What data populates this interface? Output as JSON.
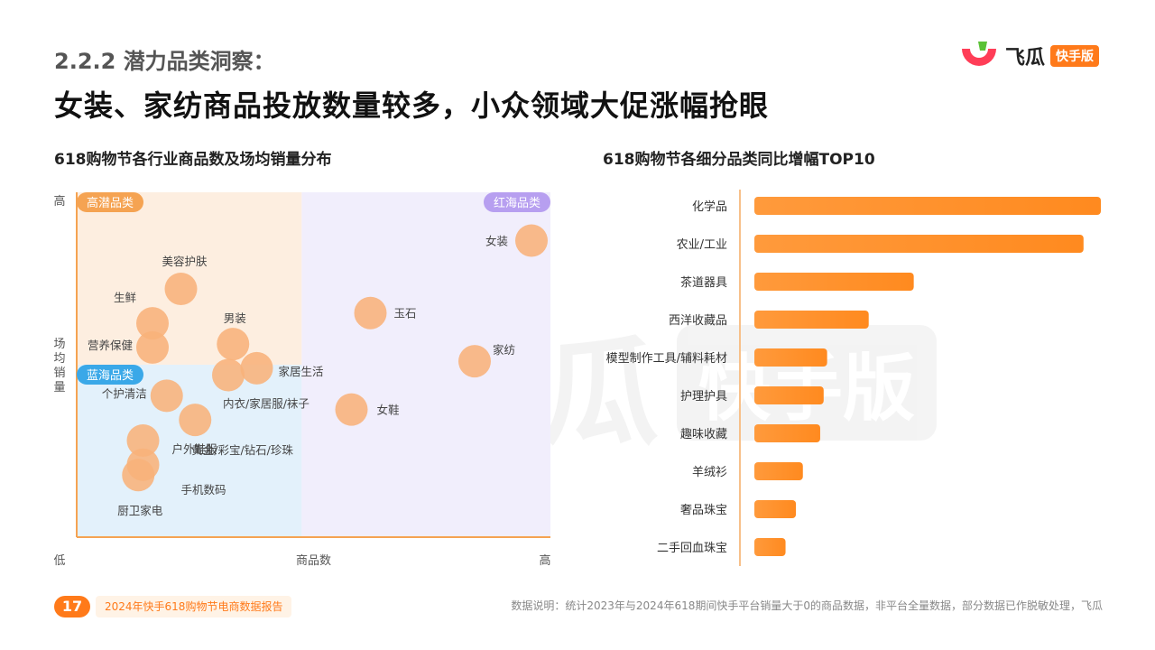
{
  "header": {
    "section_title": "2.2.2 潜力品类洞察：",
    "main_title": "女装、家纺商品投放数量较多，小众领域大促涨幅抢眼"
  },
  "logo": {
    "name": "飞瓜",
    "badge": "快手版",
    "brand_color": "#ff7a1a"
  },
  "watermark": {
    "text": "飞瓜",
    "badge": "快手版"
  },
  "footer": {
    "page_number": "17",
    "report_name": "2024年快手618购物节电商数据报告",
    "note": "数据说明：统计2023年与2024年618期间快手平台销量大于0的商品数据，非平台全量数据，部分数据已作脱敏处理，飞瓜"
  },
  "chart_data": [
    {
      "type": "scatter",
      "title": "618购物节各行业商品数及场均销量分布",
      "xlabel": "商品数",
      "ylabel": "场均销量",
      "x_low": "低",
      "x_high": "高",
      "y_high": "高",
      "xlim": [
        0,
        100
      ],
      "ylim": [
        0,
        100
      ],
      "quadrants": [
        {
          "label": "高潜品类",
          "color": "#fdeee0",
          "label_color": "#f5a352"
        },
        {
          "label": "红海品类",
          "color": "#f1eefc",
          "label_color": "#b79ff0"
        },
        {
          "label": "蓝海品类",
          "color": "#e3f1fb",
          "label_color": "#3aa8e8"
        }
      ],
      "point_color": "#f8b27a",
      "points": [
        {
          "label": "女装",
          "x": 96,
          "y": 86
        },
        {
          "label": "家纺",
          "x": 84,
          "y": 51
        },
        {
          "label": "玉石",
          "x": 62,
          "y": 65
        },
        {
          "label": "女鞋",
          "x": 58,
          "y": 37
        },
        {
          "label": "美容护肤",
          "x": 22,
          "y": 72
        },
        {
          "label": "生鲜",
          "x": 16,
          "y": 62
        },
        {
          "label": "营养保健",
          "x": 16,
          "y": 55
        },
        {
          "label": "男装",
          "x": 33,
          "y": 56
        },
        {
          "label": "家居生活",
          "x": 38,
          "y": 49
        },
        {
          "label": "内衣/家居服/袜子",
          "x": 32,
          "y": 47
        },
        {
          "label": "个护清洁",
          "x": 19,
          "y": 41
        },
        {
          "label": "黄金/彩宝/钻石/珍珠",
          "x": 25,
          "y": 34
        },
        {
          "label": "户外鞋服",
          "x": 14,
          "y": 28
        },
        {
          "label": "手机数码",
          "x": 14,
          "y": 21
        },
        {
          "label": "厨卫家电",
          "x": 13,
          "y": 18
        }
      ]
    },
    {
      "type": "bar",
      "title": "618购物节各细分品类同比增幅TOP10",
      "orientation": "horizontal",
      "bar_color": "#ff8a1f",
      "categories": [
        "化学品",
        "农业/工业",
        "茶道器具",
        "西洋收藏品",
        "模型制作工具/辅料耗材",
        "护理护具",
        "趣味收藏",
        "羊绒衫",
        "奢品珠宝",
        "二手回血珠宝"
      ],
      "values": [
        100,
        95,
        46,
        33,
        21,
        20,
        19,
        14,
        12,
        9
      ]
    }
  ]
}
